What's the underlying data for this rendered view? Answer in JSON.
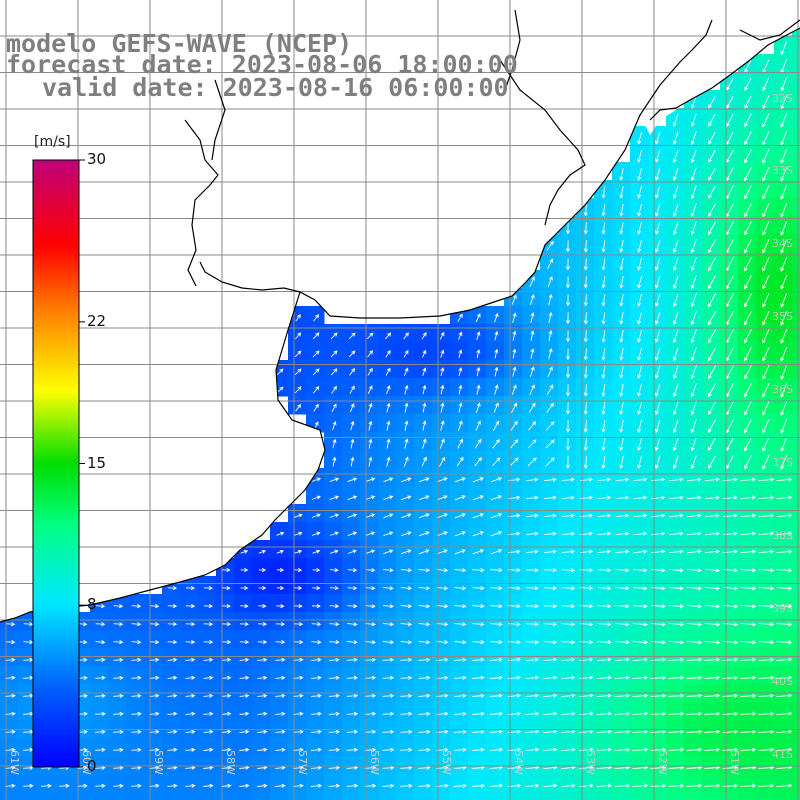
{
  "title": {
    "line1": "modelo GEFS-WAVE (NCEP)",
    "line2": "forecast date: 2023-08-06 18:00:00",
    "line3": "valid date: 2023-08-16 06:00:00"
  },
  "colorbar": {
    "unit": "[m/s]",
    "ticks": [
      {
        "value": 30,
        "label": "30"
      },
      {
        "value": 22,
        "label": "22"
      },
      {
        "value": 15,
        "label": "15"
      },
      {
        "value": 8,
        "label": "8"
      },
      {
        "value": 0,
        "label": "0"
      }
    ],
    "range": [
      0,
      30
    ],
    "colors": [
      "#0000ff",
      "#0050ff",
      "#00a0ff",
      "#00e0ff",
      "#00ff90",
      "#00e000",
      "#7fff00",
      "#ffff00",
      "#ffa500",
      "#ff4000",
      "#ff0000",
      "#e0005a",
      "#c0006e"
    ]
  },
  "grid": {
    "lat_labels": [
      "32S",
      "33S",
      "34S",
      "35S",
      "36S",
      "37S",
      "38S",
      "39S",
      "40S",
      "41S"
    ],
    "lon_labels": [
      "61W",
      "60W",
      "59W",
      "58W",
      "57W",
      "56W",
      "55W",
      "54W",
      "53W",
      "52W",
      "51W"
    ],
    "line_color": "#8a8a8a"
  },
  "map": {
    "land_color": "#ffffff",
    "coast_color": "#000000",
    "arrow_color": "#ffffff",
    "field": "wind speed"
  }
}
